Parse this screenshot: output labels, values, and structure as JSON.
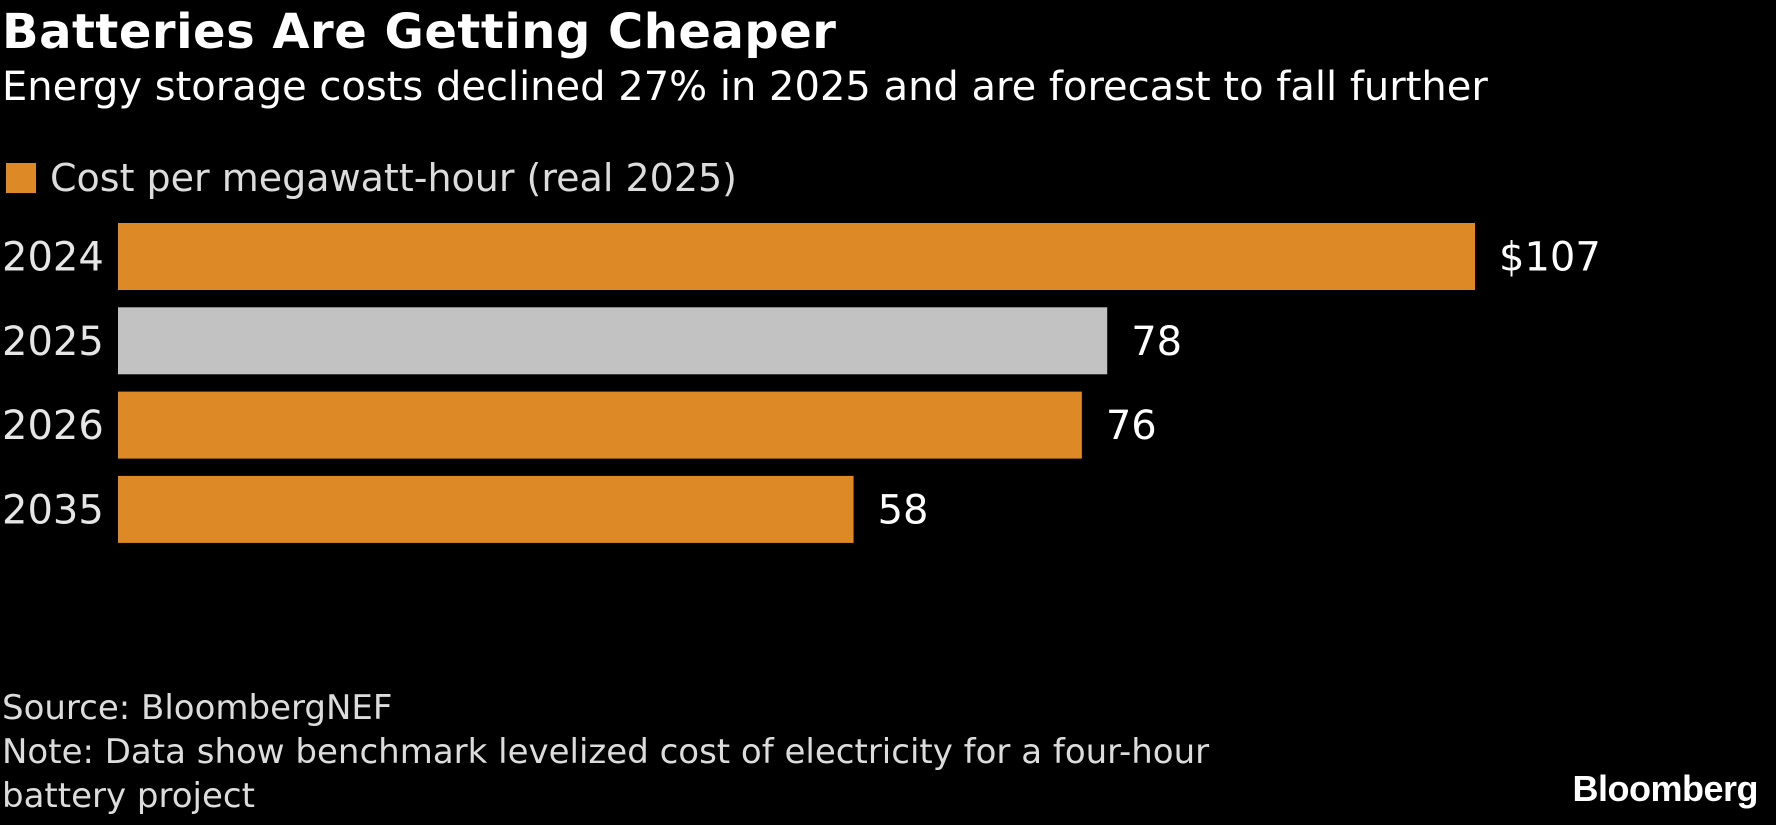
{
  "title": "Batteries Are Getting Cheaper",
  "subtitle": "Energy storage costs declined 27% in 2025 and are forecast to fall further",
  "colors": {
    "highlight": "#dd8a26",
    "neutral": "#c2c2c2",
    "background": "#000000"
  },
  "chart_data": {
    "type": "bar",
    "orientation": "horizontal",
    "title": "Batteries Are Getting Cheaper",
    "categories": [
      "2024",
      "2025",
      "2026",
      "2035"
    ],
    "series": [
      {
        "name": "Cost per megawatt-hour (real 2025)",
        "values": [
          107,
          78,
          76,
          58
        ]
      }
    ],
    "data_labels": [
      "$107",
      "78",
      "76",
      "58"
    ],
    "bar_colors": [
      "#dd8a26",
      "#c2c2c2",
      "#dd8a26",
      "#dd8a26"
    ],
    "xlim": [
      0,
      107
    ],
    "grid": false,
    "legend": "top-left"
  },
  "footer": {
    "source": "Source: BloombergNEF",
    "note_line1": "Note: Data show benchmark levelized cost of electricity for a four-hour",
    "note_line2": "battery project"
  },
  "logo": "Bloomberg"
}
